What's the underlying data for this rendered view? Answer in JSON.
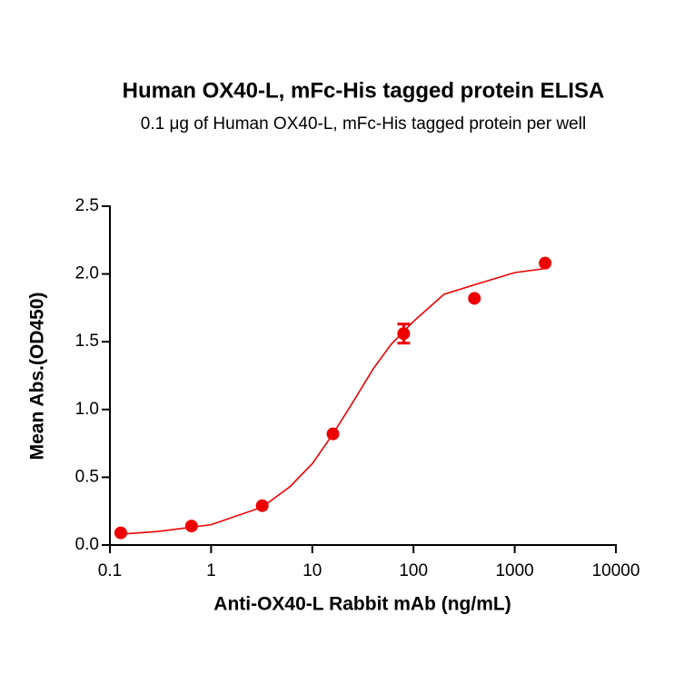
{
  "chart_data": {
    "type": "scatter",
    "title": "Human OX40-L, mFc-His tagged protein ELISA",
    "subtitle": "0.1 μg of Human OX40-L, mFc-His tagged protein per well",
    "x_label": "Anti-OX40-L Rabbit mAb (ng/mL)",
    "y_label": "Mean Abs.(OD450)",
    "x_scale": "log",
    "xlim": [
      0.1,
      10000
    ],
    "xticks": [
      0.1,
      1,
      10,
      100,
      1000,
      10000
    ],
    "ylim": [
      0,
      2.5
    ],
    "yticks": [
      {
        "value": 0,
        "label": "0.0"
      },
      0.5,
      {
        "value": 1,
        "label": "1.0"
      },
      1.5,
      {
        "value": 2,
        "label": "2.0"
      },
      2.5
    ],
    "color": "#ee0000",
    "points": {
      "x": [
        0.128,
        0.64,
        3.2,
        16,
        80,
        400,
        2000
      ],
      "values": [
        0.09,
        0.14,
        0.29,
        0.82,
        1.56,
        1.82,
        2.08
      ],
      "errors": [
        null,
        null,
        null,
        null,
        0.07,
        null,
        null
      ]
    },
    "fit": {
      "x": [
        0.128,
        0.3,
        1,
        3.2,
        6,
        10,
        16,
        25,
        40,
        60,
        100,
        200,
        400,
        1000,
        2000
      ],
      "values": [
        0.08,
        0.1,
        0.15,
        0.28,
        0.43,
        0.6,
        0.82,
        1.05,
        1.3,
        1.48,
        1.65,
        1.85,
        1.92,
        2.01,
        2.04
      ]
    }
  }
}
